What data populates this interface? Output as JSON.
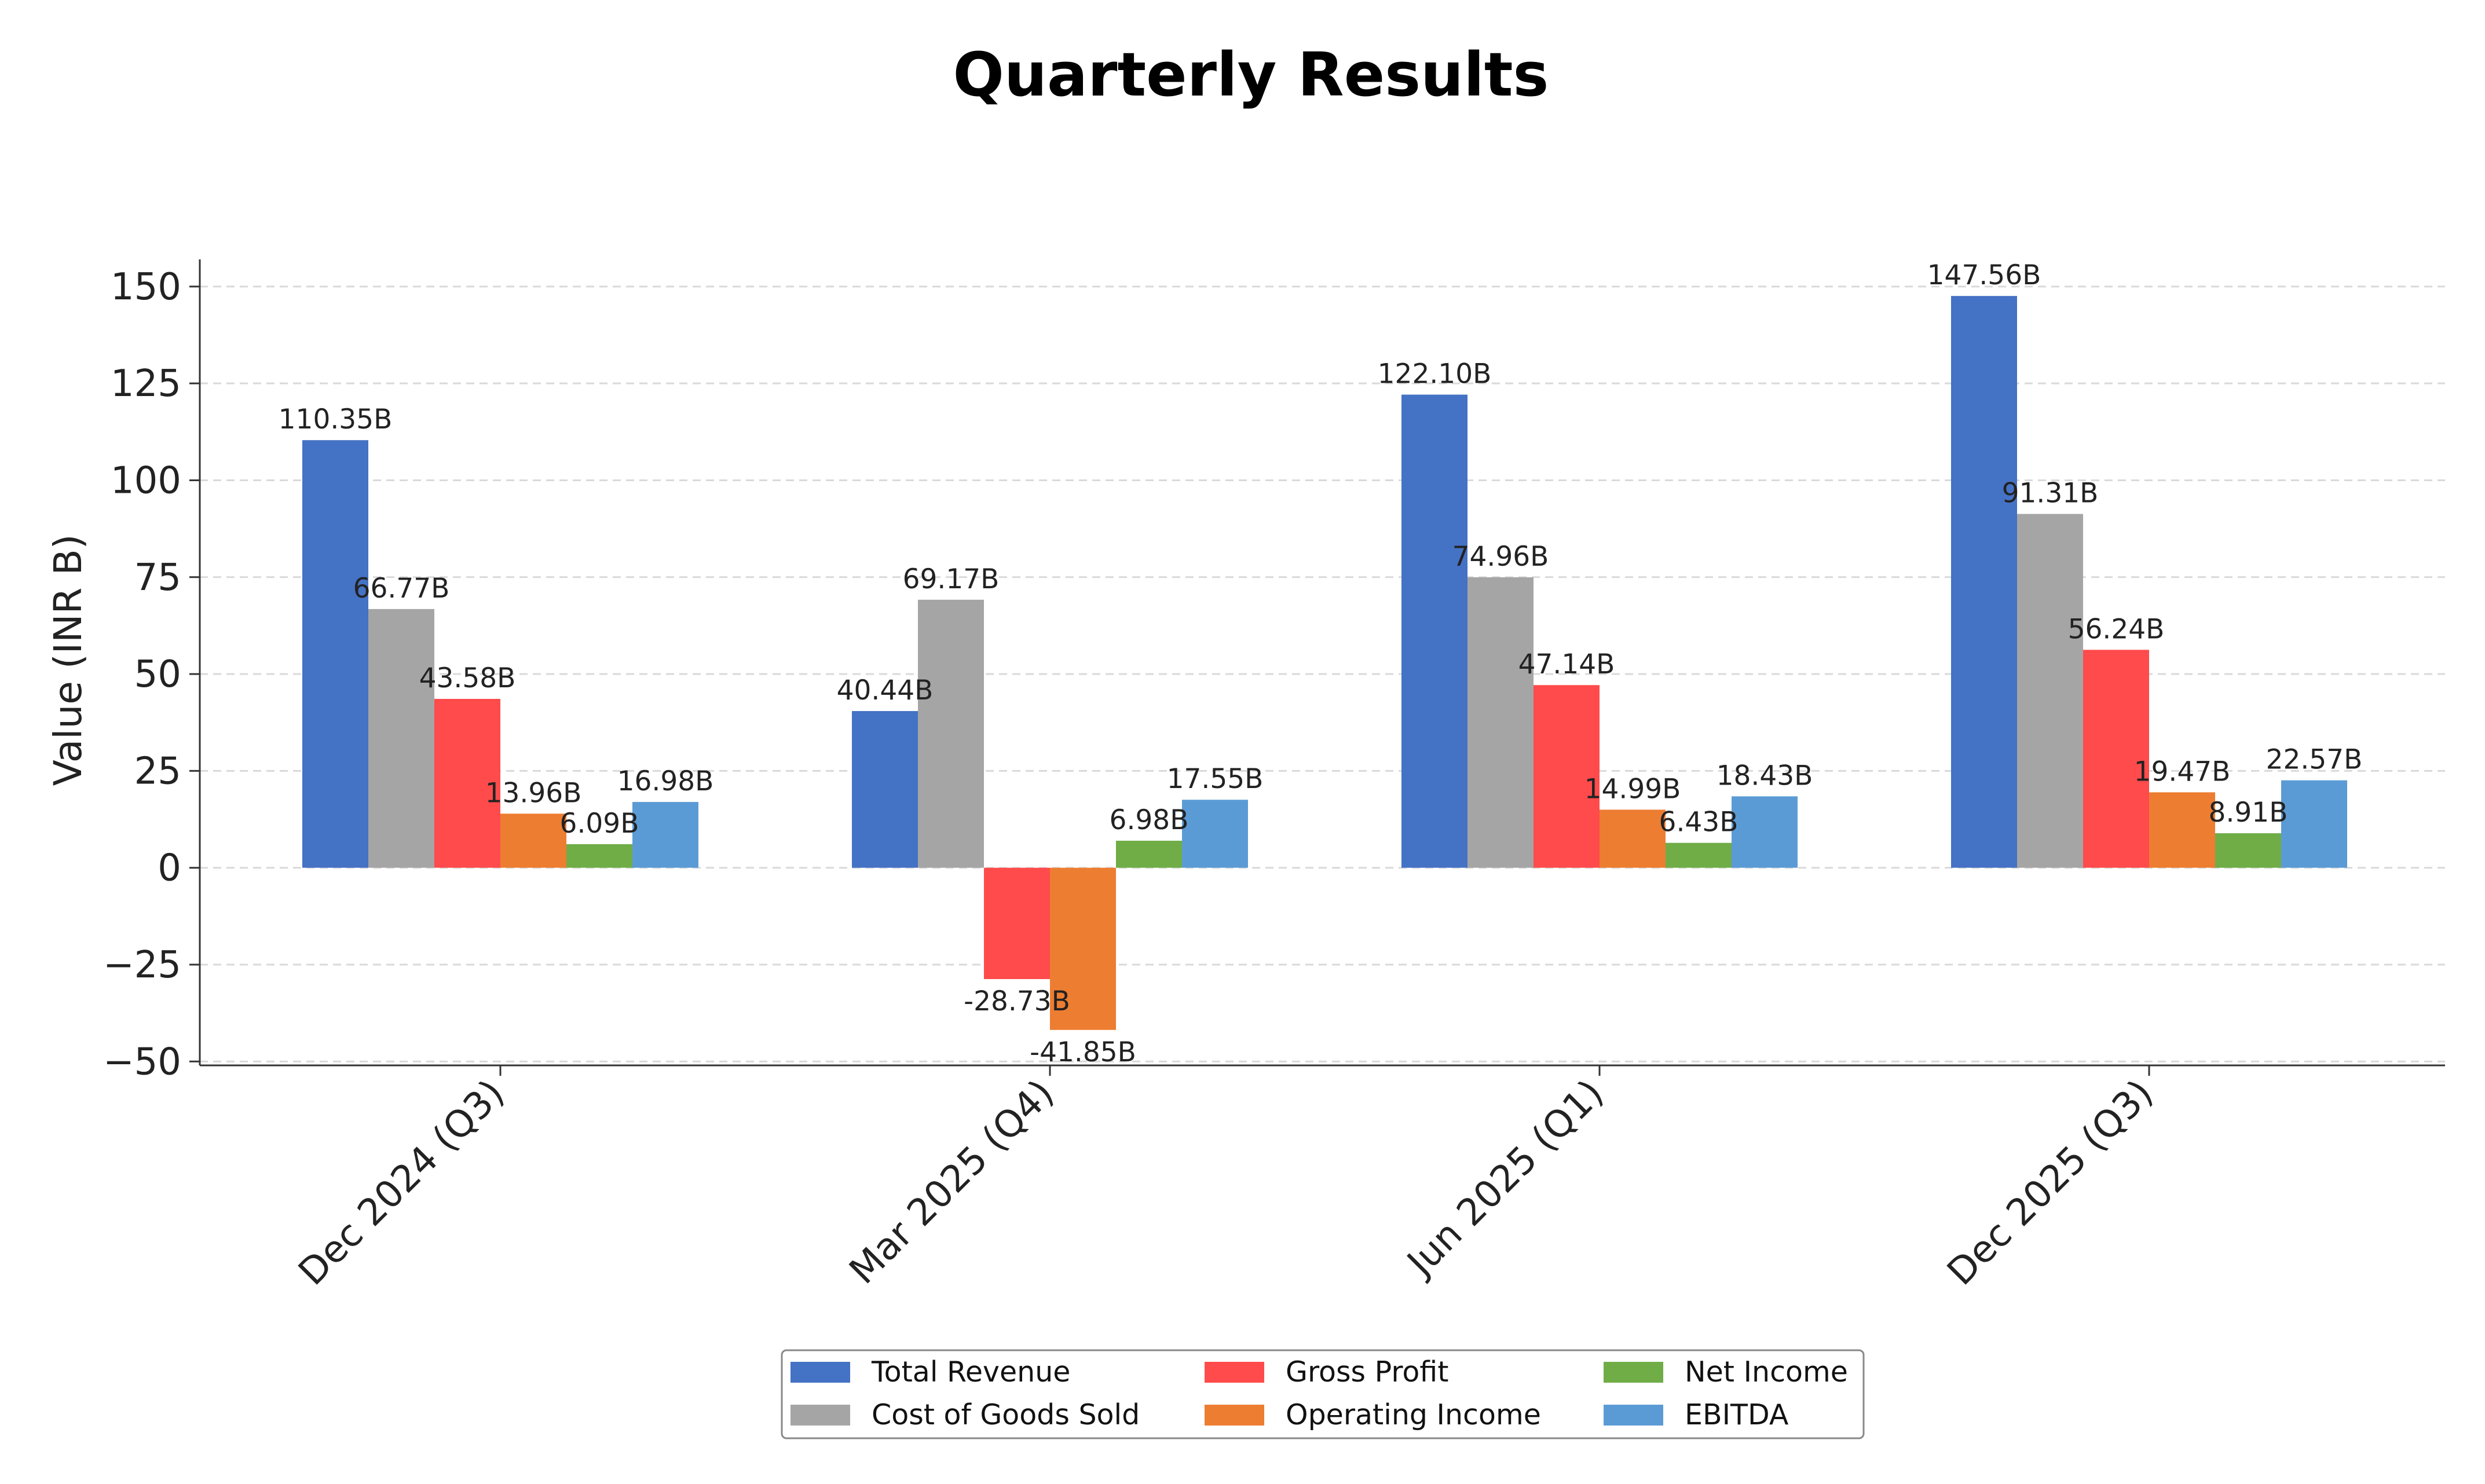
{
  "chart_data": {
    "type": "bar",
    "title": "Quarterly Results",
    "xlabel": "",
    "ylabel": "Value (INR B)",
    "ylim": [
      -51,
      157
    ],
    "yticks": [
      -50,
      -25,
      0,
      25,
      50,
      75,
      100,
      125,
      150
    ],
    "ytick_labels": [
      "−50",
      "−25",
      "0",
      "25",
      "50",
      "75",
      "100",
      "125",
      "150"
    ],
    "grid": "horizontal dashed",
    "legend": "bottom-center, 3 columns",
    "categories": [
      "Dec 2024 (Q3)",
      "Mar 2025 (Q4)",
      "Jun 2025 (Q1)",
      "Dec 2025 (Q3)"
    ],
    "series": [
      {
        "name": "Total Revenue",
        "color": "#4472C4",
        "values": [
          110.35,
          40.44,
          null,
          null
        ],
        "labels": [
          "110.35B",
          "40.44B",
          "122.10B",
          "147.56B"
        ]
      },
      {
        "name": "Cost of Goods Sold",
        "color": "#A5A5A5",
        "values": [
          66.77,
          69.17,
          74.96,
          91.31
        ],
        "labels": [
          "66.77B",
          "69.17B",
          "74.96B",
          "91.31B"
        ]
      },
      {
        "name": "Gross Profit",
        "color": "#FF4B4B",
        "values": [
          43.58,
          -28.73,
          47.14,
          56.24
        ],
        "labels": [
          "43.58B",
          "-28.73B",
          "47.14B",
          "56.24B"
        ]
      },
      {
        "name": "Operating Income",
        "color": "#ED7D31",
        "values": [
          13.96,
          -41.85,
          14.99,
          19.47
        ],
        "labels": [
          "13.96B",
          "-41.85B",
          "14.99B",
          "19.47B"
        ]
      },
      {
        "name": "Net Income",
        "color": "#70AD47",
        "values": [
          6.09,
          6.98,
          6.43,
          8.91
        ],
        "labels": [
          "6.09B",
          "6.98B",
          "6.43B",
          "8.91B"
        ]
      },
      {
        "name": "EBITDA",
        "color": "#5B9BD5",
        "values": [
          16.98,
          17.55,
          18.43,
          22.57
        ],
        "labels": [
          "16.98B",
          "17.55B",
          "18.43B",
          "22.57B"
        ]
      }
    ]
  }
}
